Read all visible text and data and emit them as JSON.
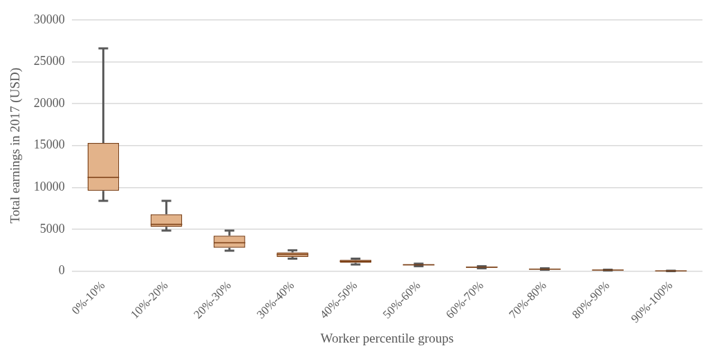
{
  "chart_data": {
    "type": "box",
    "xlabel": "Worker percentile groups",
    "ylabel": "Total earnings in 2017 (USD)",
    "categories": [
      "0%-10%",
      "10%-20%",
      "20%-30%",
      "30%-40%",
      "40%-50%",
      "50%-60%",
      "60%-70%",
      "70%-80%",
      "80%-90%",
      "90%-100%"
    ],
    "series": [
      {
        "color": "#7b3f14",
        "boxes": [
          {
            "low": 8400,
            "q1": 9600,
            "median": 11200,
            "q3": 15300,
            "high": 26600
          },
          {
            "low": 4850,
            "q1": 5300,
            "median": 5600,
            "q3": 6800,
            "high": 8400
          },
          {
            "low": 2450,
            "q1": 2800,
            "median": 3400,
            "q3": 4250,
            "high": 4850
          },
          {
            "low": 1500,
            "q1": 1700,
            "median": 2000,
            "q3": 2250,
            "high": 2500
          },
          {
            "low": 800,
            "q1": 1000,
            "median": 1200,
            "q3": 1350,
            "high": 1500
          },
          {
            "low": 600,
            "q1": 700,
            "median": 750,
            "q3": 850,
            "high": 900
          },
          {
            "low": 350,
            "q1": 400,
            "median": 500,
            "q3": 550,
            "high": 600
          },
          {
            "low": 180,
            "q1": 200,
            "median": 250,
            "q3": 330,
            "high": 350
          },
          {
            "low": 90,
            "q1": 100,
            "median": 130,
            "q3": 170,
            "high": 180
          },
          {
            "low": 10,
            "q1": 20,
            "median": 40,
            "q3": 55,
            "high": 60
          }
        ]
      }
    ],
    "ylim": [
      0,
      30000
    ],
    "yticks": [
      0,
      5000,
      10000,
      15000,
      20000,
      25000,
      30000
    ],
    "grid": "y",
    "legend": false
  }
}
